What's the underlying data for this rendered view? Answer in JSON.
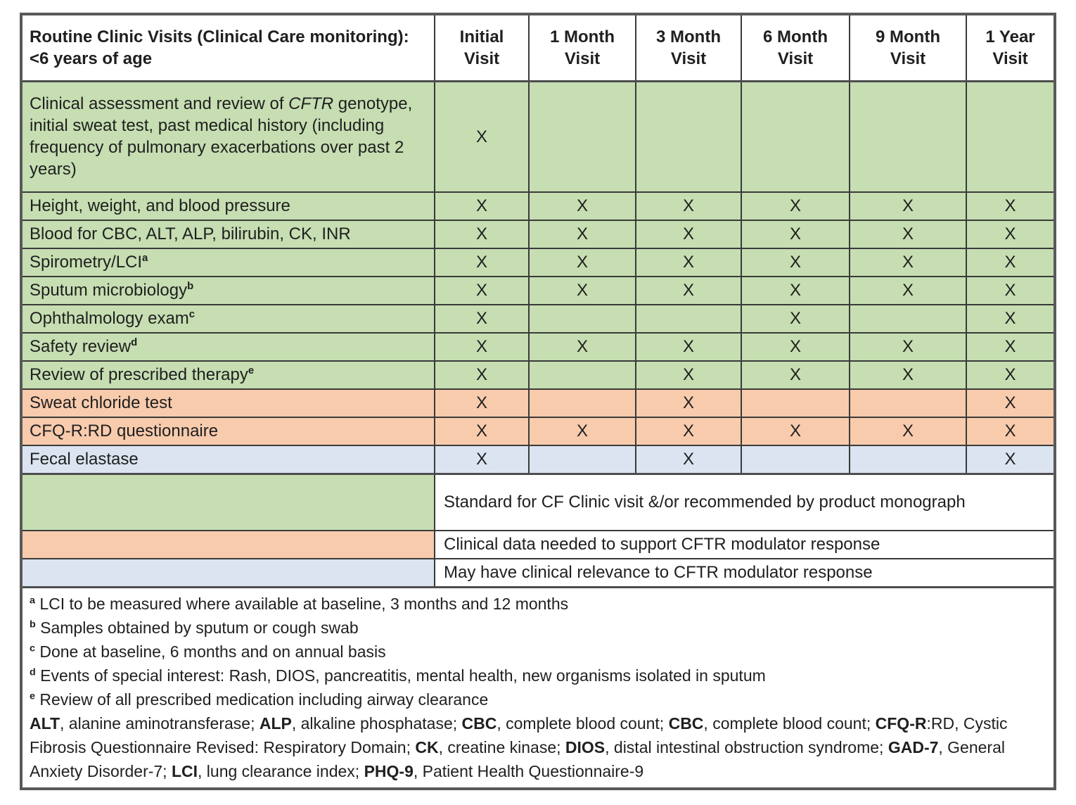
{
  "colors": {
    "green": "#c6deb2",
    "orange": "#f8cbad",
    "blue": "#dbe4f0"
  },
  "table": {
    "title": "Routine Clinic Visits (Clinical Care monitoring): <6 years of age",
    "columns": [
      "Initial\nVisit",
      "1 Month\nVisit",
      "3 Month\nVisit",
      "6 Month\nVisit",
      "9 Month\nVisit",
      "1 Year\nVisit"
    ],
    "mark": "X",
    "rows": [
      {
        "category": "green",
        "tall": true,
        "label_parts": [
          {
            "t": "Clinical assessment and review of "
          },
          {
            "t": "CFTR",
            "style": "italic"
          },
          {
            "t": " genotype, initial sweat test, past medical history (including frequency of pulmonary exacerbations over past 2 years)"
          }
        ],
        "marks": [
          1,
          0,
          0,
          0,
          0,
          0
        ]
      },
      {
        "category": "green",
        "label_parts": [
          {
            "t": "Height, weight, and blood pressure"
          }
        ],
        "marks": [
          1,
          1,
          1,
          1,
          1,
          1
        ]
      },
      {
        "category": "green",
        "label_parts": [
          {
            "t": "Blood for CBC, ALT, ALP, bilirubin, CK, INR"
          }
        ],
        "marks": [
          1,
          1,
          1,
          1,
          1,
          1
        ]
      },
      {
        "category": "green",
        "label_parts": [
          {
            "t": "Spirometry/LCI"
          },
          {
            "t": "a",
            "style": "sup"
          }
        ],
        "marks": [
          1,
          1,
          1,
          1,
          1,
          1
        ]
      },
      {
        "category": "green",
        "label_parts": [
          {
            "t": "Sputum microbiology"
          },
          {
            "t": "b",
            "style": "sup"
          }
        ],
        "marks": [
          1,
          1,
          1,
          1,
          1,
          1
        ]
      },
      {
        "category": "green",
        "label_parts": [
          {
            "t": "Ophthalmology exam"
          },
          {
            "t": "c",
            "style": "sup"
          }
        ],
        "marks": [
          1,
          0,
          0,
          1,
          0,
          1
        ]
      },
      {
        "category": "green",
        "label_parts": [
          {
            "t": "Safety review"
          },
          {
            "t": "d",
            "style": "sup"
          }
        ],
        "marks": [
          1,
          1,
          1,
          1,
          1,
          1
        ]
      },
      {
        "category": "green",
        "label_parts": [
          {
            "t": "Review of prescribed therapy"
          },
          {
            "t": "e",
            "style": "sup"
          }
        ],
        "marks": [
          1,
          0,
          1,
          1,
          1,
          1
        ]
      },
      {
        "category": "orange",
        "label_parts": [
          {
            "t": "Sweat chloride test"
          }
        ],
        "marks": [
          1,
          0,
          1,
          0,
          0,
          1
        ]
      },
      {
        "category": "orange",
        "label_parts": [
          {
            "t": "CFQ-R:RD questionnaire"
          }
        ],
        "marks": [
          1,
          1,
          1,
          1,
          1,
          1
        ]
      },
      {
        "category": "blue",
        "label_parts": [
          {
            "t": "Fecal elastase"
          }
        ],
        "marks": [
          1,
          0,
          1,
          0,
          0,
          1
        ]
      }
    ],
    "legend": [
      {
        "category": "green",
        "tall": true,
        "text": "Standard for CF Clinic visit &/or recommended by product monograph"
      },
      {
        "category": "orange",
        "text": "Clinical data needed to support CFTR modulator response"
      },
      {
        "category": "blue",
        "text": "May have clinical relevance to CFTR modulator response"
      }
    ],
    "footnotes": [
      {
        "parts": [
          {
            "t": "a",
            "style": "sup"
          },
          {
            "t": " LCI to be measured where available at baseline, 3 months and 12 months"
          }
        ]
      },
      {
        "parts": [
          {
            "t": "b",
            "style": "sup"
          },
          {
            "t": " Samples obtained by sputum or cough swab"
          }
        ]
      },
      {
        "parts": [
          {
            "t": "c",
            "style": "sup"
          },
          {
            "t": " Done at baseline, 6 months and on annual basis"
          }
        ]
      },
      {
        "parts": [
          {
            "t": "d",
            "style": "sup"
          },
          {
            "t": " Events of special interest: Rash, DIOS, pancreatitis, mental health, new organisms isolated in sputum"
          }
        ]
      },
      {
        "parts": [
          {
            "t": "e",
            "style": "sup"
          },
          {
            "t": " Review of all prescribed medication including airway clearance"
          }
        ]
      },
      {
        "parts": [
          {
            "t": "ALT",
            "style": "bold"
          },
          {
            "t": ", alanine aminotransferase; "
          },
          {
            "t": "ALP",
            "style": "bold"
          },
          {
            "t": ", alkaline phosphatase; "
          },
          {
            "t": "CBC",
            "style": "bold"
          },
          {
            "t": ", complete blood count; "
          },
          {
            "t": "CBC",
            "style": "bold"
          },
          {
            "t": ", complete blood count; "
          },
          {
            "t": "CFQ-R",
            "style": "bold"
          },
          {
            "t": ":RD, Cystic Fibrosis Questionnaire Revised: Respiratory Domain; "
          },
          {
            "t": "CK",
            "style": "bold"
          },
          {
            "t": ", creatine kinase; "
          },
          {
            "t": "DIOS",
            "style": "bold"
          },
          {
            "t": ", distal intestinal obstruction syndrome; "
          },
          {
            "t": "GAD-7",
            "style": "bold"
          },
          {
            "t": ", General Anxiety Disorder-7; "
          },
          {
            "t": "LCI",
            "style": "bold"
          },
          {
            "t": ", lung clearance index; "
          },
          {
            "t": "PHQ-9",
            "style": "bold"
          },
          {
            "t": ", Patient Health Questionnaire-9"
          }
        ]
      }
    ]
  }
}
